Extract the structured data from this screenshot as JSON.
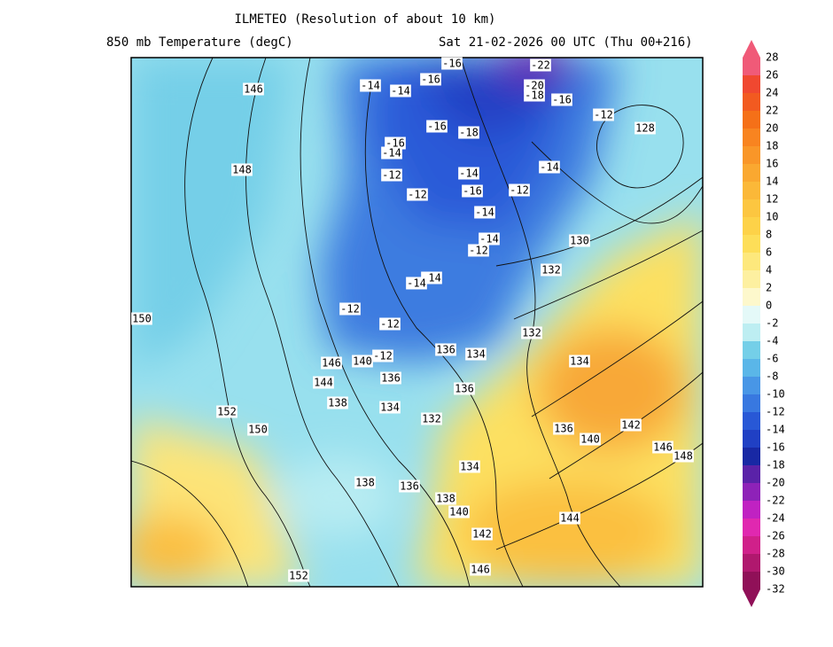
{
  "header": {
    "title": "ILMETEO (Resolution of about 10 km)",
    "left": "850 mb Temperature (degC)",
    "right": "Sat 21-02-2026 00 UTC (Thu 00+216)"
  },
  "legend": {
    "levels": [
      "28",
      "26",
      "24",
      "22",
      "20",
      "18",
      "16",
      "14",
      "12",
      "10",
      "8",
      "6",
      "4",
      "2",
      "0",
      "-2",
      "-4",
      "-6",
      "-8",
      "-10",
      "-12",
      "-14",
      "-16",
      "-18",
      "-20",
      "-22",
      "-24",
      "-26",
      "-28",
      "-30",
      "-32"
    ],
    "colors": [
      "#f05a78",
      "#f04830",
      "#f25a20",
      "#f57018",
      "#f88420",
      "#f99628",
      "#faa830",
      "#fbb838",
      "#fcc640",
      "#fdd248",
      "#fdde58",
      "#fde87c",
      "#fdf0a0",
      "#fdf8cc",
      "#e4f9f8",
      "#bdeef2",
      "#96e0ec",
      "#74cfe8",
      "#5ab6e8",
      "#4896e6",
      "#3878e0",
      "#2858d6",
      "#2040c4",
      "#1828a4",
      "#5a22a8",
      "#8e22b8",
      "#c022c2",
      "#e028b0",
      "#d0208a",
      "#b0186e",
      "#901058"
    ]
  },
  "map": {
    "labels": [
      "146",
      "148",
      "128",
      "130",
      "132",
      "132",
      "134",
      "136",
      "134",
      "136",
      "136",
      "140",
      "146",
      "144",
      "138",
      "134",
      "132",
      "152",
      "150",
      "150",
      "138",
      "136",
      "134",
      "138",
      "140",
      "142",
      "146",
      "152",
      "136",
      "140",
      "142",
      "146",
      "148",
      "144",
      "-14",
      "-14",
      "-16",
      "-16",
      "-22",
      "-20",
      "-18",
      "-16",
      "-12",
      "-16",
      "-18",
      "-16",
      "-14",
      "-12",
      "-12",
      "-14",
      "-14",
      "-16",
      "-12",
      "-14",
      "-14",
      "-12",
      "-14",
      "-14",
      "-12",
      "-12",
      "-12"
    ]
  }
}
